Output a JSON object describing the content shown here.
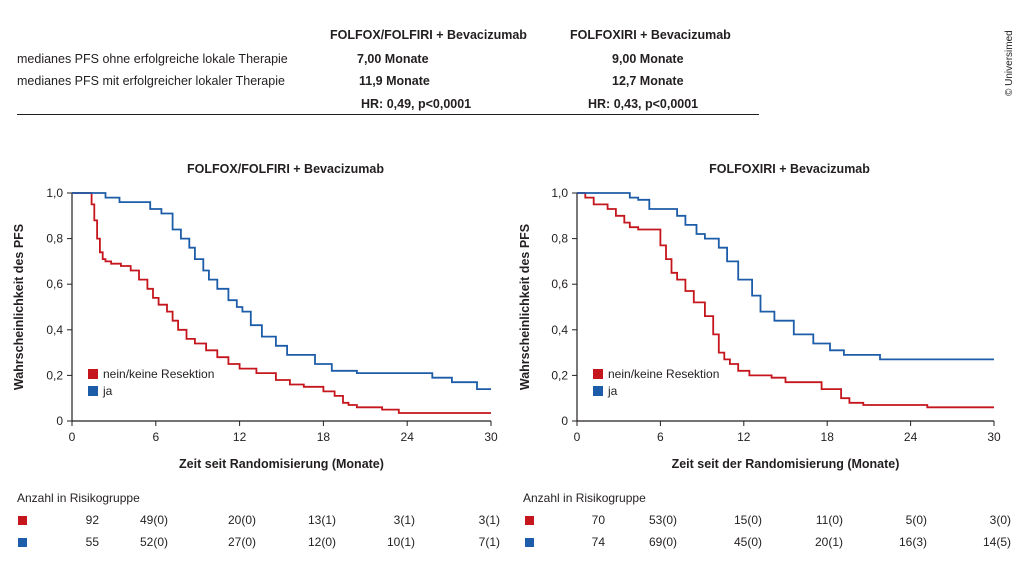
{
  "copyright": "© Universimed",
  "summary": {
    "col_headers": [
      "FOLFOX/FOLFIRI + Bevacizumab",
      "FOLFOXIRI + Bevacizumab"
    ],
    "rows": [
      {
        "label": "medianes PFS ohne erfolgreiche lokale Therapie",
        "values": [
          "7,00 Monate",
          "9,00 Monate"
        ]
      },
      {
        "label": "medianes PFS mit erfolgreicher lokaler Therapie",
        "values": [
          "11,9 Monate",
          "12,7 Monate"
        ]
      },
      {
        "label": "",
        "values": [
          "HR: 0,49, p<0,0001",
          "HR: 0,43, p<0,0001"
        ]
      }
    ]
  },
  "colors": {
    "red": "#c4161c",
    "blue": "#1c5ca8"
  },
  "chart_data": [
    {
      "type": "line",
      "title": "FOLFOX/FOLFIRI + Bevacizumab",
      "xlabel": "Zeit seit Randomisierung (Monate)",
      "ylabel": "Wahrscheinlichkeit des PFS",
      "xlim": [
        0,
        30
      ],
      "ylim": [
        0,
        1
      ],
      "xticks": [
        "0",
        "6",
        "12",
        "18",
        "24",
        "30"
      ],
      "yticks": [
        "0",
        "0,2",
        "0,4",
        "0,6",
        "0,8",
        "1,0"
      ],
      "legend_position": "bottom-left",
      "series": [
        {
          "name": "nein/keine Resektion",
          "color": "red",
          "x": [
            0,
            1.4,
            1.6,
            1.8,
            2.0,
            2.2,
            2.4,
            2.8,
            3.5,
            4.2,
            4.8,
            5.4,
            5.8,
            6.2,
            6.8,
            7.2,
            7.6,
            8.2,
            8.8,
            9.6,
            10.4,
            11.2,
            12.0,
            13.2,
            14.6,
            15.6,
            16.6,
            18.0,
            18.8,
            19.4,
            19.8,
            20.4,
            22.2,
            23.4,
            30
          ],
          "y": [
            1.0,
            0.95,
            0.88,
            0.8,
            0.74,
            0.71,
            0.7,
            0.69,
            0.68,
            0.66,
            0.62,
            0.58,
            0.54,
            0.51,
            0.48,
            0.44,
            0.4,
            0.36,
            0.34,
            0.31,
            0.28,
            0.25,
            0.23,
            0.21,
            0.18,
            0.16,
            0.15,
            0.13,
            0.11,
            0.08,
            0.07,
            0.06,
            0.05,
            0.035,
            0.035
          ]
        },
        {
          "name": "ja",
          "color": "blue",
          "x": [
            0,
            2.4,
            3.4,
            4.0,
            5.6,
            6.4,
            7.2,
            7.8,
            8.4,
            8.8,
            9.4,
            9.8,
            10.4,
            11.2,
            11.8,
            12.2,
            12.8,
            13.6,
            14.6,
            15.4,
            17.4,
            18.6,
            20.4,
            25.8,
            27.2,
            29.0,
            30
          ],
          "y": [
            1.0,
            0.98,
            0.96,
            0.96,
            0.93,
            0.91,
            0.84,
            0.8,
            0.76,
            0.71,
            0.66,
            0.62,
            0.58,
            0.53,
            0.5,
            0.48,
            0.42,
            0.37,
            0.33,
            0.29,
            0.25,
            0.22,
            0.21,
            0.19,
            0.17,
            0.14,
            0.14
          ]
        }
      ],
      "risk_table": {
        "label": "Anzahl in Risikogruppe",
        "rows": [
          {
            "color": "red",
            "values": [
              "92",
              "49(0)",
              "20(0)",
              "13(1)",
              "3(1)",
              "3(1)"
            ]
          },
          {
            "color": "blue",
            "values": [
              "55",
              "52(0)",
              "27(0)",
              "12(0)",
              "10(1)",
              "7(1)"
            ]
          }
        ]
      }
    },
    {
      "type": "line",
      "title": "FOLFOXIRI + Bevacizumab",
      "xlabel": "Zeit seit der Randomisierung (Monate)",
      "ylabel": "Wahrscheinlichkeit des PFS",
      "xlim": [
        0,
        30
      ],
      "ylim": [
        0,
        1
      ],
      "xticks": [
        "0",
        "6",
        "12",
        "18",
        "24",
        "30"
      ],
      "yticks": [
        "0",
        "0,2",
        "0,4",
        "0,6",
        "0,8",
        "1,0"
      ],
      "legend_position": "bottom-left",
      "series": [
        {
          "name": "nein/keine Resektion",
          "color": "red",
          "x": [
            0,
            0.6,
            1.2,
            2.2,
            2.8,
            3.4,
            3.8,
            4.4,
            5.2,
            6.0,
            6.4,
            6.8,
            7.2,
            7.8,
            8.4,
            9.2,
            9.8,
            10.2,
            10.6,
            11.0,
            11.6,
            12.4,
            14.0,
            15.0,
            17.6,
            19.0,
            19.6,
            20.6,
            25.2,
            30
          ],
          "y": [
            1.0,
            0.98,
            0.95,
            0.93,
            0.9,
            0.87,
            0.85,
            0.84,
            0.84,
            0.77,
            0.71,
            0.65,
            0.62,
            0.57,
            0.52,
            0.46,
            0.38,
            0.3,
            0.27,
            0.25,
            0.22,
            0.2,
            0.19,
            0.17,
            0.14,
            0.1,
            0.08,
            0.07,
            0.06,
            0.06
          ]
        },
        {
          "name": "ja",
          "color": "blue",
          "x": [
            0,
            3.8,
            4.4,
            5.2,
            6.8,
            7.2,
            7.8,
            8.6,
            9.2,
            10.2,
            10.8,
            11.6,
            12.6,
            13.2,
            14.2,
            15.6,
            17.0,
            18.2,
            19.2,
            21.8,
            30
          ],
          "y": [
            1.0,
            0.98,
            0.97,
            0.93,
            0.93,
            0.9,
            0.86,
            0.82,
            0.8,
            0.76,
            0.7,
            0.62,
            0.55,
            0.48,
            0.44,
            0.38,
            0.34,
            0.31,
            0.29,
            0.27,
            0.27
          ]
        }
      ],
      "risk_table": {
        "label": "Anzahl in Risikogruppe",
        "rows": [
          {
            "color": "red",
            "values": [
              "70",
              "53(0)",
              "15(0)",
              "11(0)",
              "5(0)",
              "3(0)"
            ]
          },
          {
            "color": "blue",
            "values": [
              "74",
              "69(0)",
              "45(0)",
              "20(1)",
              "16(3)",
              "14(5)"
            ]
          }
        ]
      }
    }
  ]
}
